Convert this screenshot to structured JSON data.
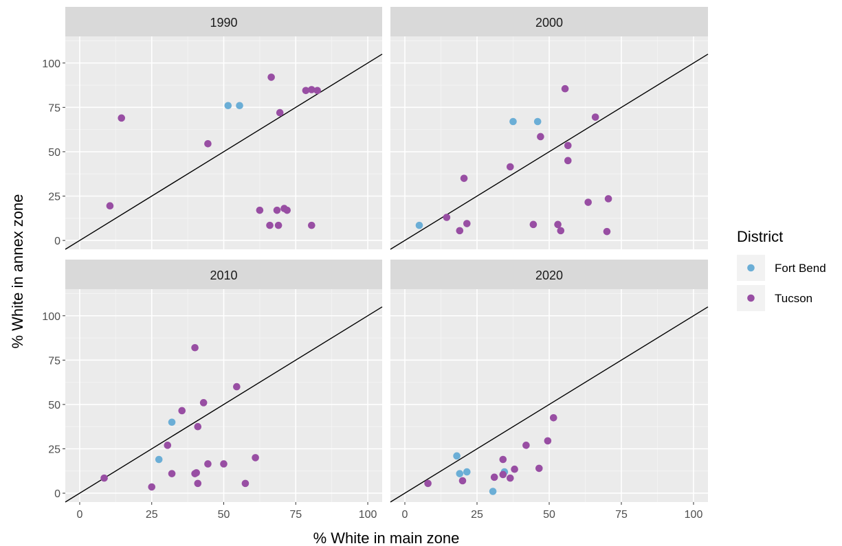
{
  "chart_data": {
    "type": "scatter",
    "xlabel": "% White in main zone",
    "ylabel": "% White in annex zone",
    "xlim": [
      -5,
      105
    ],
    "ylim": [
      -5,
      115
    ],
    "x_ticks": [
      0,
      25,
      50,
      75,
      100
    ],
    "y_ticks": [
      0,
      25,
      50,
      75,
      100
    ],
    "x_tick_labels": [
      "0",
      "25",
      "50",
      "75",
      "100"
    ],
    "y_tick_labels": [
      "0",
      "25",
      "50",
      "75",
      "100"
    ],
    "reference_line": "y = x",
    "grid": true,
    "legend": {
      "title": "District",
      "position": "right",
      "entries": [
        {
          "name": "Fort Bend",
          "color": "#6baed6"
        },
        {
          "name": "Tucson",
          "color": "#984ea3"
        }
      ]
    },
    "panels": [
      {
        "title": "1990",
        "series": [
          {
            "name": "Fort Bend",
            "points": [
              [
                51.5,
                76
              ],
              [
                55.5,
                76
              ]
            ]
          },
          {
            "name": "Tucson",
            "points": [
              [
                10.5,
                19.5
              ],
              [
                14.5,
                69
              ],
              [
                44.5,
                54.5
              ],
              [
                66.5,
                92
              ],
              [
                69.5,
                72
              ],
              [
                78.5,
                84.5
              ],
              [
                80.5,
                85
              ],
              [
                82.5,
                84.5
              ],
              [
                62.5,
                17
              ],
              [
                68.5,
                17
              ],
              [
                71,
                18
              ],
              [
                72,
                17
              ],
              [
                66,
                8.5
              ],
              [
                69,
                8.5
              ],
              [
                80.5,
                8.5
              ]
            ]
          }
        ]
      },
      {
        "title": "2000",
        "series": [
          {
            "name": "Fort Bend",
            "points": [
              [
                5,
                8.5
              ],
              [
                37.5,
                67
              ],
              [
                46,
                67
              ]
            ]
          },
          {
            "name": "Tucson",
            "points": [
              [
                55.5,
                85.5
              ],
              [
                66,
                69.5
              ],
              [
                47,
                58.5
              ],
              [
                56.5,
                53.5
              ],
              [
                56.5,
                45
              ],
              [
                36.5,
                41.5
              ],
              [
                20.5,
                35
              ],
              [
                14.5,
                13
              ],
              [
                21.5,
                9.5
              ],
              [
                19,
                5.5
              ],
              [
                44.5,
                9
              ],
              [
                53,
                9
              ],
              [
                54,
                5.5
              ],
              [
                63.5,
                21.5
              ],
              [
                70.5,
                23.5
              ],
              [
                70,
                5
              ]
            ]
          }
        ]
      },
      {
        "title": "2010",
        "series": [
          {
            "name": "Fort Bend",
            "points": [
              [
                32,
                40
              ],
              [
                27.5,
                19
              ]
            ]
          },
          {
            "name": "Tucson",
            "points": [
              [
                40,
                82
              ],
              [
                54.5,
                60
              ],
              [
                43,
                51
              ],
              [
                35.5,
                46.5
              ],
              [
                41,
                37.5
              ],
              [
                30.5,
                27
              ],
              [
                8.5,
                8.5
              ],
              [
                32,
                11
              ],
              [
                25,
                3.5
              ],
              [
                40,
                11
              ],
              [
                40.5,
                11.5
              ],
              [
                41,
                5.5
              ],
              [
                44.5,
                16.5
              ],
              [
                50,
                16.5
              ],
              [
                57.5,
                5.5
              ],
              [
                61,
                20
              ]
            ]
          }
        ]
      },
      {
        "title": "2020",
        "series": [
          {
            "name": "Fort Bend",
            "points": [
              [
                18,
                21
              ],
              [
                19,
                11
              ],
              [
                21.5,
                12
              ],
              [
                30.5,
                1
              ],
              [
                34.5,
                12
              ]
            ]
          },
          {
            "name": "Tucson",
            "points": [
              [
                8,
                5.5
              ],
              [
                20,
                7
              ],
              [
                31,
                9
              ],
              [
                34,
                19
              ],
              [
                34,
                10.5
              ],
              [
                36.5,
                8.5
              ],
              [
                38,
                13.5
              ],
              [
                42,
                27
              ],
              [
                46.5,
                14
              ],
              [
                49.5,
                29.5
              ],
              [
                51.5,
                42.5
              ]
            ]
          }
        ]
      }
    ]
  }
}
